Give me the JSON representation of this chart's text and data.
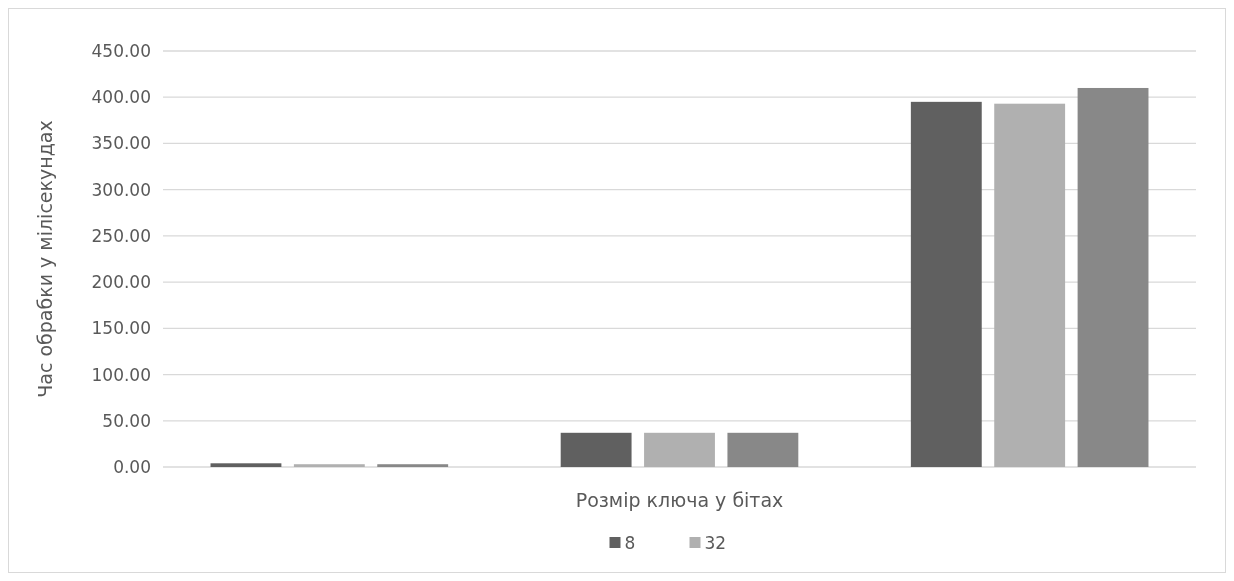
{
  "chart_data": {
    "type": "bar",
    "xlabel": "Розмір ключа у бітах",
    "ylabel": "Час обрабки у мілісекундах",
    "categories": [
      null,
      null,
      null
    ],
    "series": [
      {
        "name": "8",
        "color": "#606060",
        "values": [
          4,
          37,
          395
        ]
      },
      {
        "name": "32",
        "color": "#b0b0b0",
        "values": [
          3,
          37,
          393
        ]
      },
      {
        "color": "#888888",
        "values": [
          3,
          37,
          410
        ]
      }
    ],
    "ylim": [
      0,
      450
    ],
    "yticks": [
      {
        "value": 0,
        "label": "0.00"
      },
      {
        "value": 50,
        "label": "50.00"
      },
      {
        "value": 100,
        "label": "100.00"
      },
      {
        "value": 150,
        "label": "150.00"
      },
      {
        "value": 200,
        "label": "200.00"
      },
      {
        "value": 250,
        "label": "250.00"
      },
      {
        "value": 300,
        "label": "300.00"
      },
      {
        "value": 350,
        "label": "350.00"
      },
      {
        "value": 400,
        "label": "400.00"
      },
      {
        "value": 450,
        "label": "450.00"
      }
    ],
    "grid": "y",
    "legend": "bottom"
  }
}
